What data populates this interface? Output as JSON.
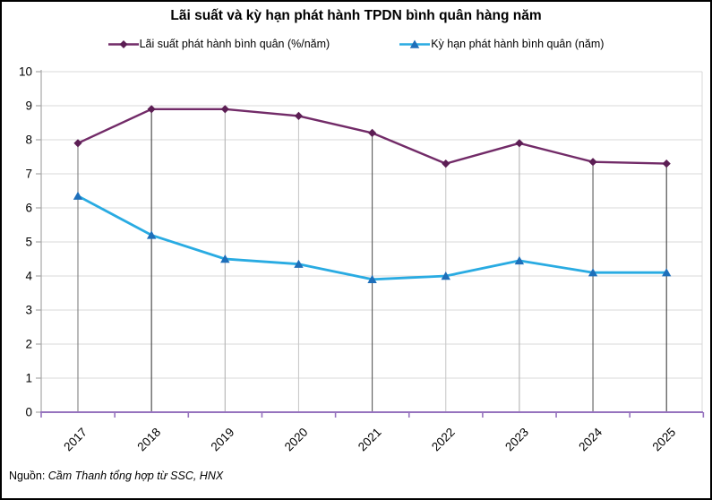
{
  "title": "Lãi suất và kỳ hạn phát hành TPDN bình quân hàng năm",
  "source": {
    "prefix": "Nguồn: ",
    "text": "Cầm Thanh tổng hợp từ SSC, HNX"
  },
  "chart_data": {
    "type": "line",
    "title": "Lãi suất và kỳ hạn phát hành TPDN bình quân hàng năm",
    "categories": [
      "2017",
      "2018",
      "2019",
      "2020",
      "2021",
      "2022",
      "2023",
      "2024",
      "2025"
    ],
    "series": [
      {
        "name": "Lãi suất phát hành bình quân (%/năm)",
        "color": "#722B68",
        "marker": "diamond",
        "marker_color": "#5C1E54",
        "values": [
          7.9,
          8.9,
          8.9,
          8.7,
          8.2,
          7.3,
          7.9,
          7.35,
          7.3
        ]
      },
      {
        "name": "Kỳ hạn phát hành bình quân (năm)",
        "color": "#29ABE2",
        "marker": "triangle",
        "marker_color": "#1E6FBA",
        "values": [
          6.35,
          5.2,
          4.5,
          4.35,
          3.9,
          4.0,
          4.45,
          4.1,
          4.1
        ]
      }
    ],
    "ylim": [
      0,
      10
    ],
    "ytick_step": 1,
    "grid": "horizontal",
    "legend_position": "top",
    "drop_lines": true,
    "colors": {
      "gridline": "#D9D9D9",
      "x_axis": "#9673BE",
      "y_axis": "#A6A6A6",
      "text": "#000000",
      "drop_lines": [
        "#808080",
        "#404040",
        "#B3B3B3",
        "#C9C9C9",
        "#595959",
        "#C9C9C9",
        "#B3B3B3",
        "#595959",
        "#404040"
      ]
    }
  }
}
